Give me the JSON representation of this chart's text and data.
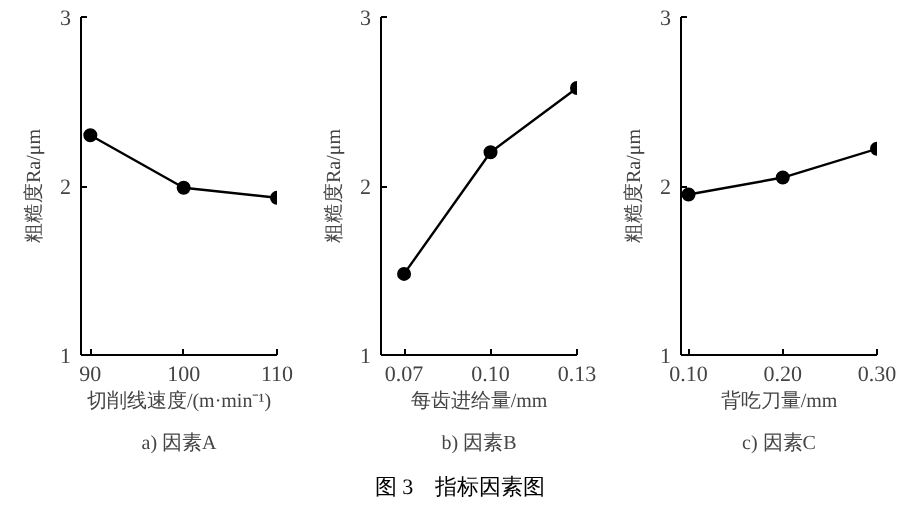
{
  "chart_data": [
    {
      "type": "line",
      "title": "a) 因素A",
      "xlabel": "切削线速度/(m·min⁻¹)",
      "ylabel": "粗糙度Ra/μm",
      "x": [
        90,
        100,
        110
      ],
      "series": [
        {
          "color": "#000000",
          "values": [
            2.3,
            1.99,
            1.93
          ]
        }
      ],
      "xlim": [
        89,
        110
      ],
      "xticks": [
        90,
        100,
        110
      ],
      "ylim": [
        1,
        3
      ],
      "yticks": [
        1,
        2,
        3
      ],
      "marker": "circle",
      "line_style": "solid",
      "grid": false
    },
    {
      "type": "line",
      "title": "b) 因素B",
      "xlabel": "每齿进给量/mm",
      "ylabel": "粗糙度Ra/μm",
      "x": [
        0.07,
        0.1,
        0.13
      ],
      "series": [
        {
          "color": "#000000",
          "values": [
            1.48,
            2.2,
            2.58
          ]
        }
      ],
      "xlim": [
        0.062,
        0.13
      ],
      "xticks": [
        {
          "value": 0.07,
          "label": "0.07"
        },
        {
          "value": 0.1,
          "label": "0.10"
        },
        {
          "value": 0.13,
          "label": "0.13"
        }
      ],
      "ylim": [
        1,
        3
      ],
      "yticks": [
        1,
        2,
        3
      ],
      "marker": "circle",
      "line_style": "solid",
      "grid": false,
      "annotations": [
        "图 3　指标因素图"
      ]
    },
    {
      "type": "line",
      "title": "c) 因素C",
      "xlabel": "背吃刀量/mm",
      "ylabel": "粗糙度Ra/μm",
      "x": [
        0.1,
        0.2,
        0.3
      ],
      "series": [
        {
          "color": "#000000",
          "values": [
            1.95,
            2.05,
            2.22
          ]
        }
      ],
      "xlim": [
        0.092,
        0.3
      ],
      "xticks": [
        {
          "value": 0.1,
          "label": "0.10"
        },
        {
          "value": 0.2,
          "label": "0.20"
        },
        {
          "value": 0.3,
          "label": "0.30"
        }
      ],
      "ylim": [
        1,
        3
      ],
      "yticks": [
        1,
        2,
        3
      ],
      "marker": "circle",
      "line_style": "solid",
      "grid": false
    }
  ]
}
